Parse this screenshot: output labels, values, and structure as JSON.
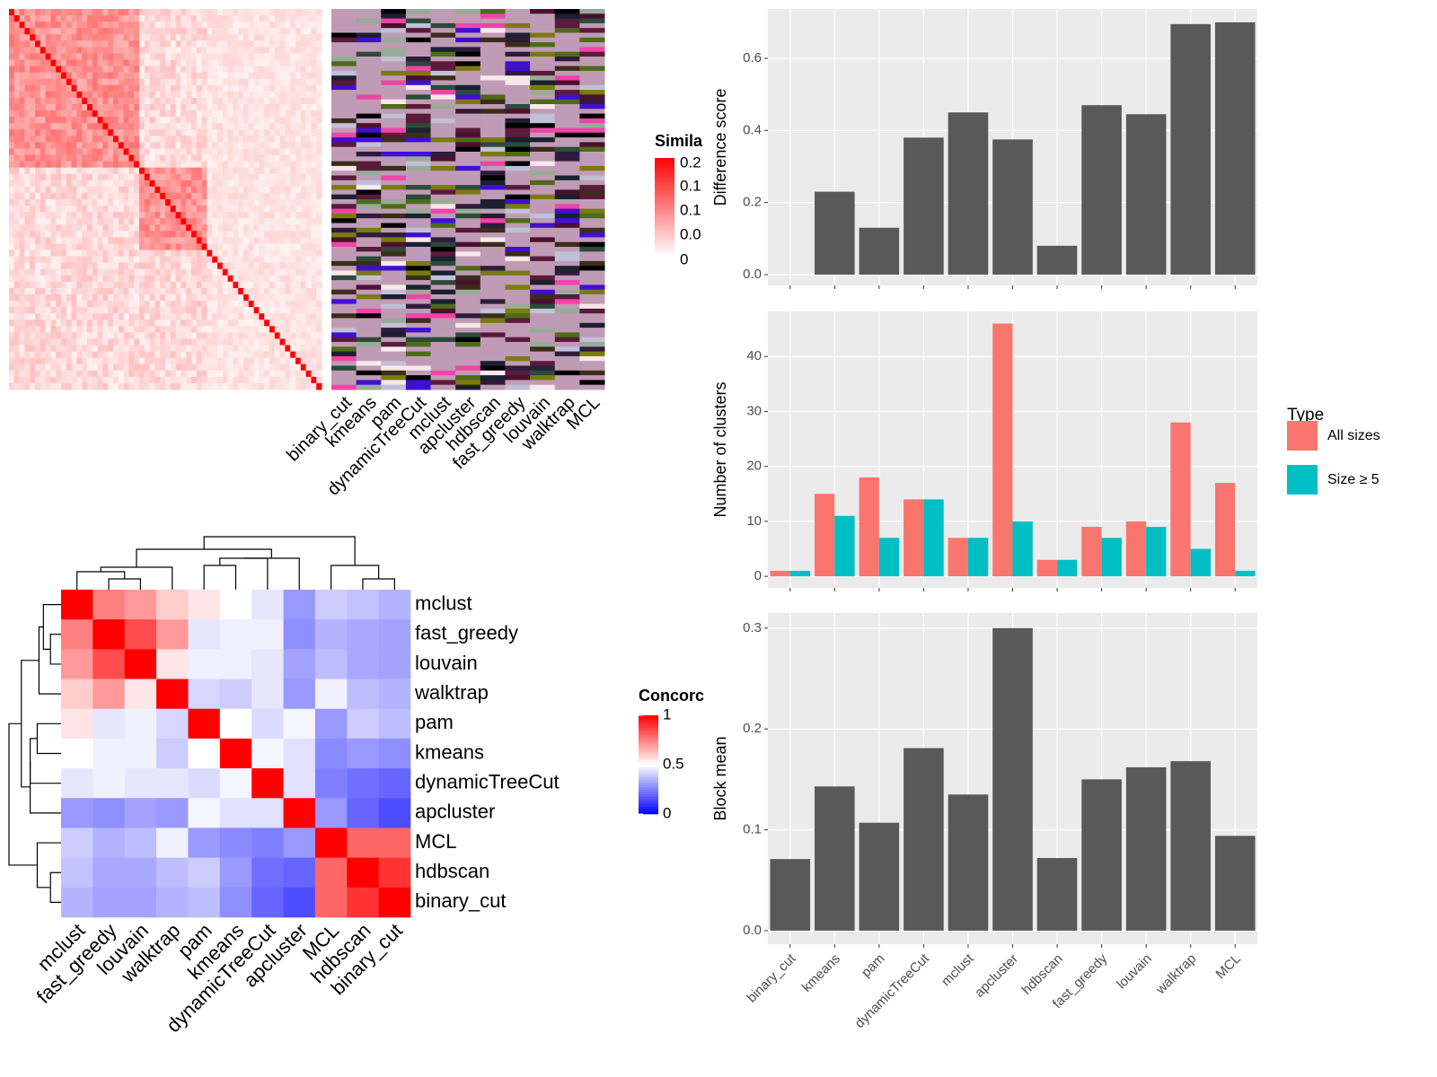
{
  "similarity_heatmap": {
    "column_labels": [
      "binary_cut",
      "kmeans",
      "pam",
      "dynamicTreeCut",
      "mclust",
      "apcluster",
      "hdbscan",
      "fast_greedy",
      "louvain",
      "walktrap",
      "MCL"
    ],
    "legend": {
      "title": "Simila",
      "labels": [
        "0.2",
        "0.1",
        "0.1",
        "0.0",
        "0"
      ]
    }
  },
  "chart_data": [
    {
      "type": "heatmap",
      "categories": [
        "mclust",
        "fast_greedy",
        "louvain",
        "walktrap",
        "pam",
        "kmeans",
        "dynamicTreeCut",
        "apcluster",
        "MCL",
        "hdbscan",
        "binary_cut"
      ],
      "values": [
        [
          1,
          0.75,
          0.7,
          0.6,
          0.55,
          0.5,
          0.45,
          0.3,
          0.4,
          0.38,
          0.35
        ],
        [
          0.75,
          1,
          0.85,
          0.7,
          0.45,
          0.47,
          0.47,
          0.28,
          0.35,
          0.33,
          0.32
        ],
        [
          0.7,
          0.85,
          1,
          0.55,
          0.47,
          0.47,
          0.45,
          0.32,
          0.37,
          0.33,
          0.32
        ],
        [
          0.6,
          0.7,
          0.55,
          1,
          0.42,
          0.4,
          0.45,
          0.3,
          0.47,
          0.37,
          0.35
        ],
        [
          0.55,
          0.45,
          0.47,
          0.42,
          1,
          0.5,
          0.43,
          0.48,
          0.3,
          0.4,
          0.37
        ],
        [
          0.5,
          0.47,
          0.47,
          0.4,
          0.5,
          1,
          0.48,
          0.44,
          0.27,
          0.3,
          0.28
        ],
        [
          0.45,
          0.47,
          0.45,
          0.45,
          0.43,
          0.48,
          1,
          0.44,
          0.25,
          0.22,
          0.2
        ],
        [
          0.3,
          0.28,
          0.32,
          0.3,
          0.48,
          0.44,
          0.44,
          1,
          0.3,
          0.2,
          0.15
        ],
        [
          0.4,
          0.35,
          0.37,
          0.47,
          0.3,
          0.27,
          0.25,
          0.3,
          1,
          0.8,
          0.8
        ],
        [
          0.38,
          0.33,
          0.33,
          0.37,
          0.4,
          0.3,
          0.22,
          0.2,
          0.8,
          1,
          0.9
        ],
        [
          0.35,
          0.32,
          0.32,
          0.35,
          0.37,
          0.28,
          0.2,
          0.15,
          0.8,
          0.9,
          1
        ]
      ],
      "legend_title": "Concorc",
      "zlim": [
        0,
        1
      ],
      "zticks": [
        0,
        0.5,
        1
      ],
      "colors": [
        "#0000ff",
        "#ffffff",
        "#ff0000"
      ]
    },
    {
      "type": "bar",
      "ylabel": "Difference score",
      "categories": [
        "binary_cut",
        "kmeans",
        "pam",
        "dynamicTreeCut",
        "mclust",
        "apcluster",
        "hdbscan",
        "fast_greedy",
        "louvain",
        "walktrap",
        "MCL"
      ],
      "values": [
        0,
        0.23,
        0.13,
        0.38,
        0.45,
        0.375,
        0.08,
        0.47,
        0.445,
        0.695,
        0.7
      ],
      "color": "#595959",
      "ylim": [
        -0.03,
        0.737
      ],
      "yticks": [
        {
          "value": 0,
          "label": "0.0"
        },
        0.2,
        0.4,
        0.6
      ],
      "grid": true
    },
    {
      "type": "grouped_bar",
      "ylabel": "Number of clusters",
      "categories": [
        "binary_cut",
        "kmeans",
        "pam",
        "dynamicTreeCut",
        "mclust",
        "apcluster",
        "hdbscan",
        "fast_greedy",
        "louvain",
        "walktrap",
        "MCL"
      ],
      "series": [
        {
          "name": "All sizes",
          "color": "#F8766D",
          "values": [
            1,
            15,
            18,
            14,
            7,
            46,
            3,
            9,
            10,
            28,
            17
          ]
        },
        {
          "name": "Size ≥ 5",
          "color": "#00BFC4",
          "values": [
            1,
            11,
            7,
            14,
            7,
            10,
            3,
            7,
            9,
            5,
            1
          ]
        }
      ],
      "legend_title": "Type",
      "ylim": [
        -2.1,
        48.2
      ],
      "yticks": [
        0,
        10,
        20,
        30,
        40
      ],
      "grid": true
    },
    {
      "type": "bar",
      "ylabel": "Block mean",
      "categories": [
        "binary_cut",
        "kmeans",
        "pam",
        "dynamicTreeCut",
        "mclust",
        "apcluster",
        "hdbscan",
        "fast_greedy",
        "louvain",
        "walktrap",
        "MCL"
      ],
      "values": [
        0.071,
        0.143,
        0.107,
        0.181,
        0.135,
        0.3,
        0.072,
        0.15,
        0.162,
        0.168,
        0.094
      ],
      "color": "#595959",
      "ylim": [
        -0.0134,
        0.315
      ],
      "yticks": [
        {
          "value": 0,
          "label": "0.0"
        },
        0.1,
        0.2,
        0.3
      ],
      "grid": true
    }
  ]
}
